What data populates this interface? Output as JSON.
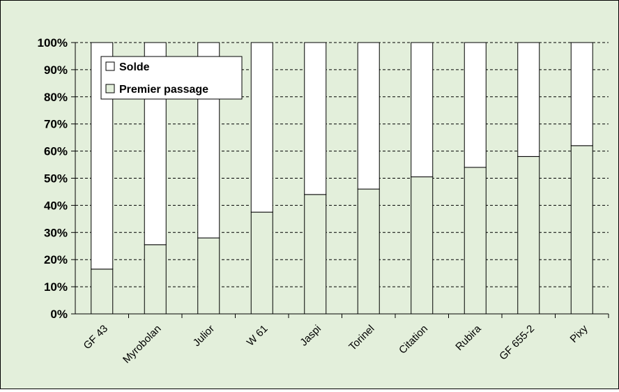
{
  "chart_data": {
    "type": "bar",
    "stacked": true,
    "normalized_percent": true,
    "categories": [
      "GF 43",
      "Myrobolan",
      "Julior",
      "W 61",
      "Jaspi",
      "Torinel",
      "Citation",
      "Rubira",
      "GF 655-2",
      "Pixy"
    ],
    "series": [
      {
        "name": "Premier passage",
        "values": [
          16.5,
          25.5,
          28,
          37.5,
          44,
          46,
          50.5,
          54,
          58,
          62
        ],
        "color": "#e3efdb"
      },
      {
        "name": "Solde",
        "values": [
          83.5,
          74.5,
          72,
          62.5,
          56,
          54,
          49.5,
          46,
          42,
          38
        ],
        "color": "#ffffff"
      }
    ],
    "yticks": [
      "0%",
      "10%",
      "20%",
      "30%",
      "40%",
      "50%",
      "60%",
      "70%",
      "80%",
      "90%",
      "100%"
    ],
    "ylim": [
      0,
      100
    ],
    "grid": "horizontal dashed",
    "legend": {
      "placement": "top-left",
      "entries": [
        "Solde",
        "Premier passage"
      ]
    },
    "colors": {
      "background": "#e3efdb",
      "plot_area": "#e3efdb",
      "outline": "#000000"
    }
  }
}
